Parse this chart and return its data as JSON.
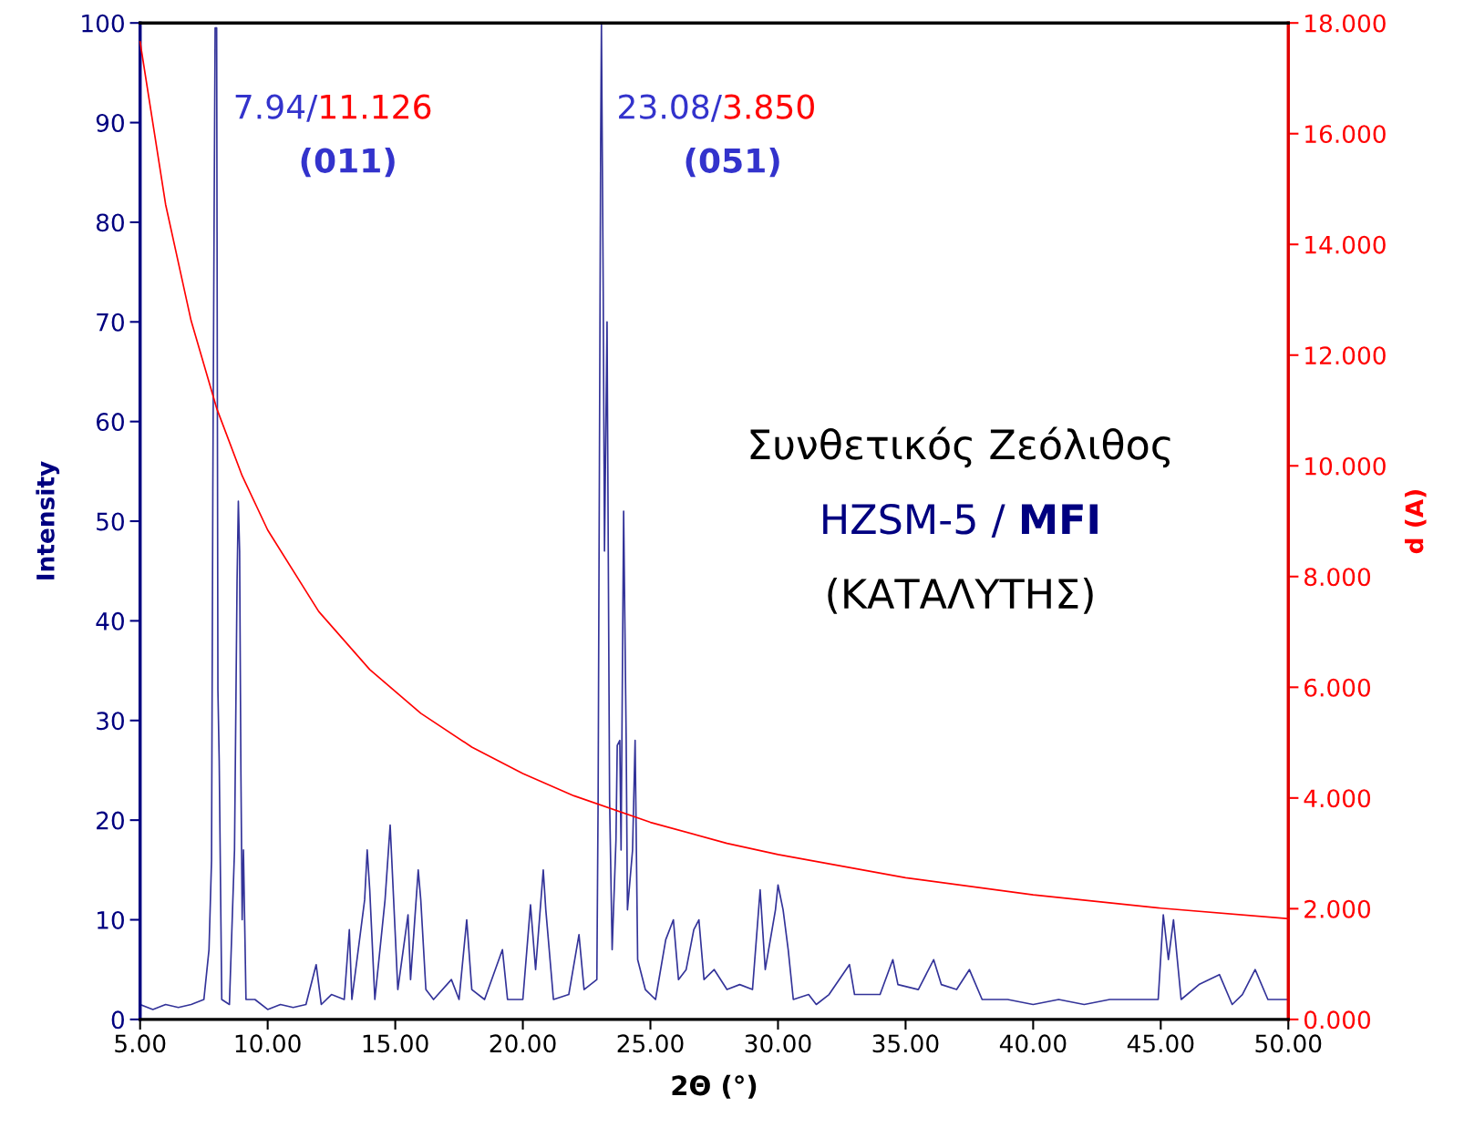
{
  "chart_data": {
    "type": "line",
    "xlabel": "2Θ (°)",
    "ylabel": "Intensity",
    "y2label": "d (A)",
    "xlim": [
      5,
      50
    ],
    "xticks": [
      {
        "value": 5,
        "label": "5.00"
      },
      {
        "value": 10,
        "label": "10.00"
      },
      {
        "value": 15,
        "label": "15.00"
      },
      {
        "value": 20,
        "label": "20.00"
      },
      {
        "value": 25,
        "label": "25.00"
      },
      {
        "value": 30,
        "label": "30.00"
      },
      {
        "value": 35,
        "label": "35.00"
      },
      {
        "value": 40,
        "label": "40.00"
      },
      {
        "value": 45,
        "label": "45.00"
      },
      {
        "value": 50,
        "label": "50.00"
      }
    ],
    "ylim": [
      0,
      100
    ],
    "yticks": [
      0,
      10,
      20,
      30,
      40,
      50,
      60,
      70,
      80,
      90,
      100
    ],
    "y2lim": [
      0,
      18
    ],
    "y2ticks": [
      {
        "value": 0,
        "label": "0.000"
      },
      {
        "value": 2,
        "label": "2.000"
      },
      {
        "value": 4,
        "label": "4.000"
      },
      {
        "value": 6,
        "label": "6.000"
      },
      {
        "value": 8,
        "label": "8.000"
      },
      {
        "value": 10,
        "label": "10.000"
      },
      {
        "value": 12,
        "label": "12.000"
      },
      {
        "value": 14,
        "label": "14.000"
      },
      {
        "value": 16,
        "label": "16.000"
      },
      {
        "value": 18,
        "label": "18.000"
      }
    ],
    "grid": false,
    "marker": "none",
    "line_style": "solid",
    "series": [
      {
        "color": "#333399",
        "axis": "y",
        "x": [
          5.0,
          5.5,
          6.0,
          6.5,
          7.0,
          7.5,
          7.7,
          7.8,
          7.85,
          7.9,
          7.94,
          8.0,
          8.05,
          8.1,
          8.2,
          8.5,
          8.7,
          8.8,
          8.85,
          8.9,
          8.95,
          9.0,
          9.05,
          9.15,
          9.5,
          10.0,
          10.5,
          11.0,
          11.5,
          11.9,
          12.1,
          12.5,
          13.0,
          13.2,
          13.3,
          13.8,
          13.9,
          14.0,
          14.2,
          14.6,
          14.8,
          14.9,
          15.1,
          15.5,
          15.6,
          15.9,
          16.0,
          16.2,
          16.5,
          17.2,
          17.5,
          17.8,
          18.0,
          18.5,
          19.2,
          19.4,
          20.0,
          20.3,
          20.5,
          20.8,
          20.9,
          21.2,
          21.8,
          22.2,
          22.4,
          22.9,
          22.95,
          23.05,
          23.08,
          23.15,
          23.2,
          23.3,
          23.4,
          23.5,
          23.65,
          23.7,
          23.8,
          23.85,
          23.95,
          24.05,
          24.1,
          24.3,
          24.4,
          24.5,
          24.8,
          25.2,
          25.6,
          25.9,
          26.1,
          26.4,
          26.7,
          26.9,
          27.1,
          27.5,
          28.0,
          28.5,
          29.0,
          29.3,
          29.5,
          29.9,
          30.0,
          30.2,
          30.4,
          30.6,
          31.2,
          31.5,
          32.0,
          32.8,
          33.0,
          34.0,
          34.5,
          34.7,
          35.5,
          36.1,
          36.4,
          37.0,
          37.5,
          38.0,
          39.0,
          40.0,
          41.0,
          42.0,
          43.0,
          44.0,
          44.9,
          45.1,
          45.3,
          45.5,
          45.8,
          46.5,
          47.3,
          47.8,
          48.2,
          48.7,
          49.2,
          50.0
        ],
        "values": [
          1.5,
          1.0,
          1.5,
          1.2,
          1.5,
          2,
          7,
          16,
          53,
          80,
          99.5,
          99.5,
          33,
          26,
          2,
          1.5,
          17,
          44,
          52,
          47,
          25,
          10,
          17,
          2,
          2,
          1,
          1.5,
          1.2,
          1.5,
          5.5,
          1.5,
          2.5,
          2,
          9,
          2,
          12,
          17,
          13,
          2,
          12,
          19.5,
          14,
          3,
          10.5,
          4,
          15,
          12,
          3,
          2,
          4,
          2,
          10,
          3,
          2,
          7,
          2,
          2,
          11.5,
          5,
          15,
          11,
          2,
          2.5,
          8.5,
          3,
          4,
          22,
          88,
          100,
          73,
          47,
          70,
          22,
          7,
          18,
          27.5,
          28,
          17,
          51,
          28,
          11,
          17,
          28,
          6,
          3,
          2,
          8,
          10,
          4,
          5,
          9,
          10,
          4,
          5,
          3,
          3.5,
          3,
          13,
          5,
          11,
          13.5,
          11,
          7,
          2,
          2.5,
          1.5,
          2.5,
          5.5,
          2.5,
          2.5,
          6,
          3.5,
          3,
          6,
          3.5,
          3,
          5,
          2,
          2,
          1.5,
          2,
          1.5,
          2,
          2,
          2,
          10.5,
          6,
          10,
          2,
          3.5,
          4.5,
          1.5,
          2.5,
          5,
          2,
          2
        ]
      },
      {
        "color": "#ff0000",
        "axis": "y2",
        "x": [
          5,
          6,
          7,
          8,
          9,
          10,
          12,
          14,
          16,
          18,
          20,
          22,
          25,
          28,
          30,
          35,
          40,
          45,
          50
        ],
        "values": [
          17.66,
          14.72,
          12.62,
          11.04,
          9.82,
          8.84,
          7.37,
          6.32,
          5.53,
          4.92,
          4.44,
          4.04,
          3.56,
          3.18,
          2.98,
          2.56,
          2.25,
          2.01,
          1.82
        ]
      }
    ],
    "annotations": [
      "7.94/11.126",
      "(011)",
      "23.08/3.850",
      "(051)",
      "Συνθετικός Ζεόλιθος",
      "HZSM-5 / MFI",
      "(ΚΑΤΑΛΥΤΗΣ)"
    ]
  }
}
